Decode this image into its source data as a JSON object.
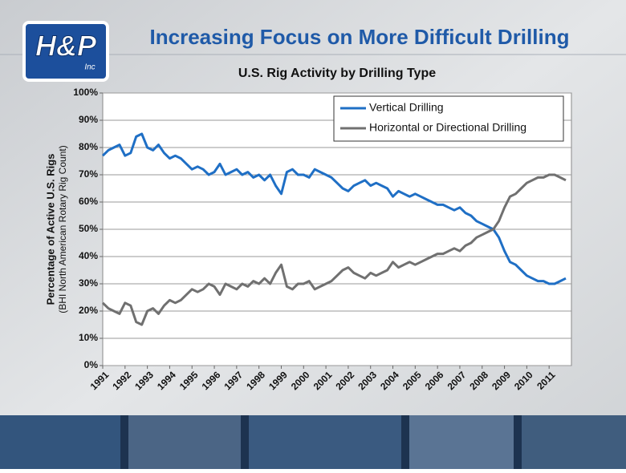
{
  "logo": {
    "text": "H&P",
    "sub": "Inc"
  },
  "slide_title": "Increasing Focus on More Difficult Drilling",
  "chart_data": {
    "type": "line",
    "title": "U.S. Rig Activity by Drilling Type",
    "y_label": "Percentage of Active U.S. Rigs",
    "y_sublabel": "(BHI North American Rotary Rig Count)",
    "x": [
      1991,
      1991.25,
      1991.5,
      1991.75,
      1992,
      1992.25,
      1992.5,
      1992.75,
      1993,
      1993.25,
      1993.5,
      1993.75,
      1994,
      1994.25,
      1994.5,
      1994.75,
      1995,
      1995.25,
      1995.5,
      1995.75,
      1996,
      1996.25,
      1996.5,
      1996.75,
      1997,
      1997.25,
      1997.5,
      1997.75,
      1998,
      1998.25,
      1998.5,
      1998.75,
      1999,
      1999.25,
      1999.5,
      1999.75,
      2000,
      2000.25,
      2000.5,
      2000.75,
      2001,
      2001.25,
      2001.5,
      2001.75,
      2002,
      2002.25,
      2002.5,
      2002.75,
      2003,
      2003.25,
      2003.5,
      2003.75,
      2004,
      2004.25,
      2004.5,
      2004.75,
      2005,
      2005.25,
      2005.5,
      2005.75,
      2006,
      2006.25,
      2006.5,
      2006.75,
      2007,
      2007.25,
      2007.5,
      2007.75,
      2008,
      2008.25,
      2008.5,
      2008.75,
      2009,
      2009.25,
      2009.5,
      2009.75,
      2010,
      2010.25,
      2010.5,
      2010.75,
      2011,
      2011.25,
      2011.5,
      2011.75
    ],
    "series": [
      {
        "name": "Vertical Drilling",
        "color": "#1f6fc5",
        "values": [
          77,
          79,
          80,
          81,
          77,
          78,
          84,
          85,
          80,
          79,
          81,
          78,
          76,
          77,
          76,
          74,
          72,
          73,
          72,
          70,
          71,
          74,
          70,
          71,
          72,
          70,
          71,
          69,
          70,
          68,
          70,
          66,
          63,
          71,
          72,
          70,
          70,
          69,
          72,
          71,
          70,
          69,
          67,
          65,
          64,
          66,
          67,
          68,
          66,
          67,
          66,
          65,
          62,
          64,
          63,
          62,
          63,
          62,
          61,
          60,
          59,
          59,
          58,
          57,
          58,
          56,
          55,
          53,
          52,
          51,
          50,
          47,
          42,
          38,
          37,
          35,
          33,
          32,
          31,
          31,
          30,
          30,
          31,
          32
        ]
      },
      {
        "name": "Horizontal or Directional Drilling",
        "color": "#707070",
        "values": [
          23,
          21,
          20,
          19,
          23,
          22,
          16,
          15,
          20,
          21,
          19,
          22,
          24,
          23,
          24,
          26,
          28,
          27,
          28,
          30,
          29,
          26,
          30,
          29,
          28,
          30,
          29,
          31,
          30,
          32,
          30,
          34,
          37,
          29,
          28,
          30,
          30,
          31,
          28,
          29,
          30,
          31,
          33,
          35,
          36,
          34,
          33,
          32,
          34,
          33,
          34,
          35,
          38,
          36,
          37,
          38,
          37,
          38,
          39,
          40,
          41,
          41,
          42,
          43,
          42,
          44,
          45,
          47,
          48,
          49,
          50,
          53,
          58,
          62,
          63,
          65,
          67,
          68,
          69,
          69,
          70,
          70,
          69,
          68
        ]
      }
    ],
    "xlim": [
      1991,
      2012
    ],
    "xticks": [
      1991,
      1992,
      1993,
      1994,
      1995,
      1996,
      1997,
      1998,
      1999,
      2000,
      2001,
      2002,
      2003,
      2004,
      2005,
      2006,
      2007,
      2008,
      2009,
      2010,
      2011
    ],
    "ylim": [
      0,
      100
    ],
    "yticks": [
      {
        "value": 0,
        "label": "0%"
      },
      {
        "value": 10,
        "label": "10%"
      },
      {
        "value": 20,
        "label": "20%"
      },
      {
        "value": 30,
        "label": "30%"
      },
      {
        "value": 40,
        "label": "40%"
      },
      {
        "value": 50,
        "label": "50%"
      },
      {
        "value": 60,
        "label": "60%"
      },
      {
        "value": 70,
        "label": "70%"
      },
      {
        "value": 80,
        "label": "80%"
      },
      {
        "value": 90,
        "label": "90%"
      },
      {
        "value": 100,
        "label": "100%"
      }
    ],
    "grid": true,
    "legend": "upper right"
  }
}
